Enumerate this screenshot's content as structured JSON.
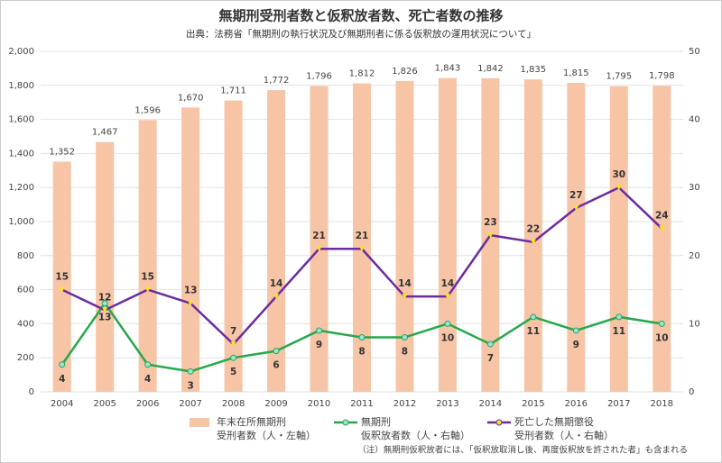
{
  "chart_data": {
    "type": "bar-line",
    "title": "無期刑受刑者数と仮釈放者数、死亡者数の推移",
    "subtitle": "出典：法務省「無期刑の執行状況及び無期刑者に係る仮釈放の運用状況について」",
    "note": "（注）無期刑仮釈放者には、「仮釈放取消し後、再度仮釈放を許された者」も含まれる",
    "categories": [
      "2004",
      "2005",
      "2006",
      "2007",
      "2008",
      "2009",
      "2010",
      "2011",
      "2012",
      "2013",
      "2014",
      "2015",
      "2016",
      "2017",
      "2018"
    ],
    "series": [
      {
        "name": "年末在所無期刑\n受刑者数（人・左軸）",
        "kind": "bar",
        "color": "#f7c4a6",
        "values": [
          1352,
          1467,
          1596,
          1670,
          1711,
          1772,
          1796,
          1812,
          1826,
          1843,
          1842,
          1835,
          1815,
          1795,
          1798
        ],
        "value_labels": [
          "1,352",
          "1,467",
          "1,596",
          "1,670",
          "1,711",
          "1,772",
          "1,796",
          "1,812",
          "1,826",
          "1,843",
          "1,842",
          "1,835",
          "1,815",
          "1,795",
          "1,798"
        ]
      },
      {
        "name": "無期刑\n仮釈放者数（人・右軸）",
        "kind": "line",
        "axis": "y2",
        "color": "#25a84c",
        "values": [
          4,
          13,
          4,
          3,
          5,
          6,
          9,
          8,
          8,
          10,
          7,
          11,
          9,
          11,
          10
        ]
      },
      {
        "name": "死亡した無期懲役\n受刑者数（人・右軸）",
        "kind": "line",
        "axis": "y2",
        "color": "#6b2c9e",
        "values": [
          15,
          12,
          15,
          13,
          7,
          14,
          21,
          21,
          14,
          14,
          23,
          22,
          27,
          30,
          24
        ]
      }
    ],
    "ylim": [
      0,
      2000
    ],
    "yticks": [
      0,
      200,
      400,
      600,
      800,
      {
        "value": 1000,
        "label": "1,000"
      },
      {
        "value": 1200,
        "label": "1,200"
      },
      {
        "value": 1400,
        "label": "1,400"
      },
      {
        "value": 1600,
        "label": "1,600"
      },
      {
        "value": 1800,
        "label": "1,800"
      },
      {
        "value": 2000,
        "label": "2,000"
      }
    ],
    "y2lim": [
      0,
      50
    ],
    "y2ticks": [
      0,
      10,
      20,
      30,
      40,
      50
    ],
    "grid": true
  }
}
